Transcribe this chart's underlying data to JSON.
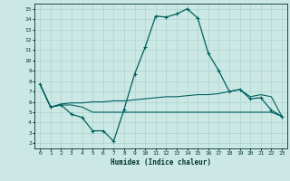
{
  "title": "",
  "xlabel": "Humidex (Indice chaleur)",
  "ylabel": "",
  "background_color": "#cce8e4",
  "grid_color": "#aad4d0",
  "line_color": "#006060",
  "xlim": [
    -0.5,
    23.5
  ],
  "ylim": [
    1.5,
    15.5
  ],
  "xticks": [
    0,
    1,
    2,
    3,
    4,
    5,
    6,
    7,
    8,
    9,
    10,
    11,
    12,
    13,
    14,
    15,
    16,
    17,
    18,
    19,
    20,
    21,
    22,
    23
  ],
  "yticks": [
    2,
    3,
    4,
    5,
    6,
    7,
    8,
    9,
    10,
    11,
    12,
    13,
    14,
    15
  ],
  "line1_x": [
    0,
    1,
    2,
    3,
    4,
    5,
    6,
    7,
    8,
    9,
    10,
    11,
    12,
    13,
    14,
    15,
    16,
    17,
    18,
    19,
    20,
    21,
    22,
    23
  ],
  "line1_y": [
    7.7,
    5.5,
    5.7,
    4.8,
    4.5,
    3.2,
    3.2,
    2.2,
    5.3,
    8.7,
    11.3,
    14.3,
    14.2,
    14.5,
    15.0,
    14.1,
    10.7,
    9.0,
    7.0,
    7.2,
    6.3,
    6.4,
    5.2,
    4.6
  ],
  "line2_x": [
    0,
    1,
    2,
    3,
    4,
    5,
    6,
    7,
    8,
    9,
    10,
    11,
    12,
    13,
    14,
    15,
    16,
    17,
    18,
    19,
    20,
    21,
    22,
    23
  ],
  "line2_y": [
    7.7,
    5.5,
    5.8,
    5.9,
    5.9,
    6.0,
    6.0,
    6.1,
    6.1,
    6.2,
    6.3,
    6.4,
    6.5,
    6.5,
    6.6,
    6.7,
    6.7,
    6.8,
    7.0,
    7.2,
    6.5,
    6.7,
    6.5,
    4.6
  ],
  "line3_x": [
    0,
    1,
    2,
    3,
    4,
    5,
    6,
    7,
    8,
    9,
    10,
    11,
    12,
    13,
    14,
    15,
    16,
    17,
    18,
    19,
    20,
    21,
    22,
    23
  ],
  "line3_y": [
    7.7,
    5.5,
    5.7,
    5.7,
    5.5,
    5.0,
    5.0,
    5.0,
    5.0,
    5.0,
    5.0,
    5.0,
    5.0,
    5.0,
    5.0,
    5.0,
    5.0,
    5.0,
    5.0,
    5.0,
    5.0,
    5.0,
    5.0,
    4.6
  ]
}
